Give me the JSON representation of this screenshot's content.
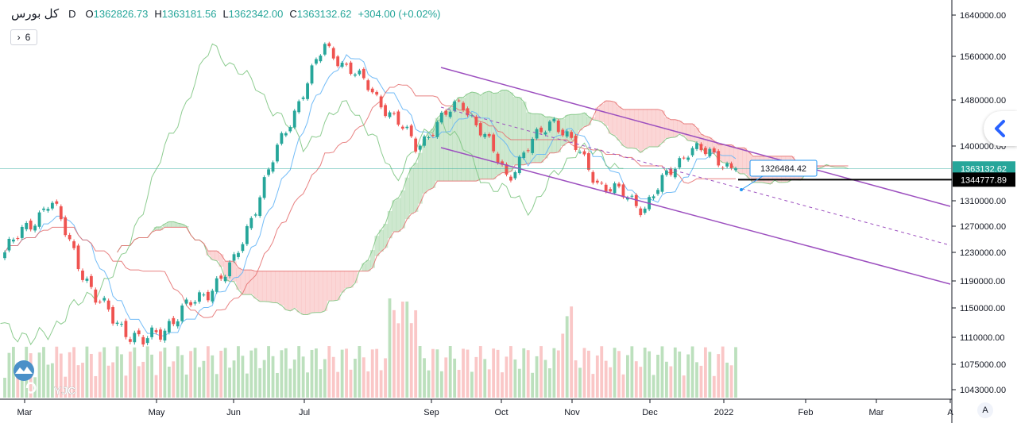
{
  "legend": {
    "symbol": "کل بورس",
    "timeframe": "D",
    "open_label": "O",
    "open": "1362826.73",
    "high_label": "H",
    "high": "1363181.56",
    "low_label": "L",
    "low": "1362342.00",
    "close_label": "C",
    "close": "1363132.62",
    "change": "+304.00 (+0.02%)",
    "indicator_toggle": "6"
  },
  "price_tag_last": "1363132.62",
  "price_tag_line": "1344777.89",
  "annotation_label": "1326484.42",
  "auto_scale_label": "A",
  "watermark": "YJC",
  "colors": {
    "up": "#26a69a",
    "down": "#ef5350",
    "channel": "#9c4fbf",
    "cloud_bull": "#a5d6a7",
    "cloud_bear": "#f8b4b4",
    "tenkan": "#64b5f6",
    "kijun": "#e57373",
    "chikou": "#81c784",
    "accent": "#2962ff"
  },
  "chart_data": {
    "type": "candlestick",
    "title": "کل بورس",
    "x_tick_labels": [
      "Mar",
      "May",
      "Jun",
      "Jul",
      "Sep",
      "Oct",
      "Nov",
      "Dec",
      "2022",
      "Feb",
      "Mar",
      "A"
    ],
    "y_tick_labels": [
      "1640000.00",
      "1560000.00",
      "1480000.00",
      "1400000.00",
      "1310000.00",
      "1270000.00",
      "1230000.00",
      "1190000.00",
      "1150000.00",
      "1110000.00",
      "1075000.00",
      "1043000.00"
    ],
    "ohlc_last": {
      "open": 1362826.73,
      "high": 1363181.56,
      "low": 1362342.0,
      "close": 1363132.62
    },
    "approx_close_path": [
      {
        "date": "Mar",
        "close": 1230000
      },
      {
        "date": "Apr",
        "close": 1310000
      },
      {
        "date": "May",
        "close": 1160000
      },
      {
        "date": "Jun",
        "close": 1100000
      },
      {
        "date": "Jun",
        "close": 1150000
      },
      {
        "date": "Jul",
        "close": 1210000
      },
      {
        "date": "Aug",
        "close": 1400000
      },
      {
        "date": "Sep",
        "close": 1580000
      },
      {
        "date": "Sep",
        "close": 1500000
      },
      {
        "date": "Oct",
        "close": 1400000
      },
      {
        "date": "Oct",
        "close": 1480000
      },
      {
        "date": "Nov",
        "close": 1350000
      },
      {
        "date": "Nov",
        "close": 1450000
      },
      {
        "date": "Dec",
        "close": 1340000
      },
      {
        "date": "Dec",
        "close": 1300000
      },
      {
        "date": "2022",
        "close": 1400000
      },
      {
        "date": "2022",
        "close": 1363132.62
      }
    ],
    "horizontal_line": 1344777.89,
    "channel": {
      "upper_start": 1550000,
      "upper_end_label": "1310000.00",
      "lower_start": 1400000,
      "lower_end_label": "1190000.00"
    }
  }
}
